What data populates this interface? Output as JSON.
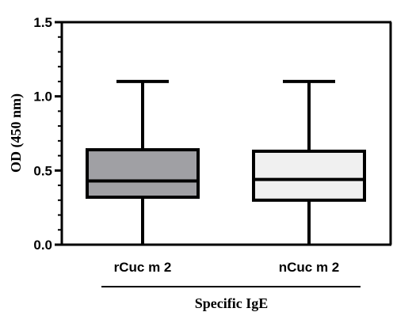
{
  "chart_data": {
    "type": "box",
    "ylabel": "OD (450 nm)",
    "xlabel": "Specific IgE",
    "ylim": [
      0,
      1.5
    ],
    "yticks": [
      "0.0",
      "0.5",
      "1.0",
      "1.5"
    ],
    "grid": false,
    "categories": [
      "rCuc m 2",
      "nCuc m 2"
    ],
    "boxes": [
      {
        "name": "rCuc m 2",
        "min": 0.0,
        "q1": 0.32,
        "median": 0.43,
        "q3": 0.64,
        "max": 1.1,
        "fill": "#a0a0a4"
      },
      {
        "name": "nCuc m 2",
        "min": 0.0,
        "q1": 0.3,
        "median": 0.44,
        "q3": 0.63,
        "max": 1.1,
        "fill": "#f0f0f0"
      }
    ]
  }
}
